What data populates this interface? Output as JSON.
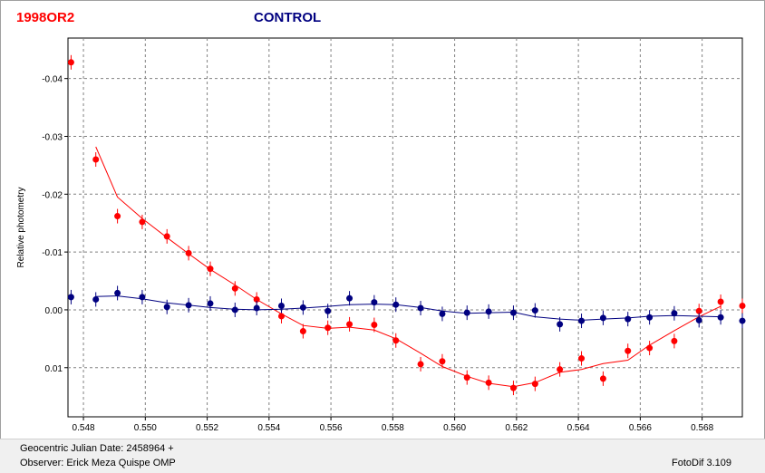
{
  "legend": {
    "target_label": "1998OR2",
    "control_label": "CONTROL",
    "target_color": "#ff0000",
    "control_color": "#000080"
  },
  "footer": {
    "julian_date": "Geocentric Julian Date: 2458964 +",
    "observer": "Observer: Erick Meza Quispe OMP",
    "version": "FotoDif 3.109"
  },
  "chart_data": {
    "type": "scatter",
    "ylabel": "Relative photometry",
    "xlabel": "",
    "xlim": [
      0.5475,
      0.5693
    ],
    "ylim": [
      0.0185,
      -0.047
    ],
    "y_inverted": true,
    "grid": true,
    "x_ticks": [
      "0.548",
      "0.550",
      "0.552",
      "0.554",
      "0.556",
      "0.558",
      "0.560",
      "0.562",
      "0.564",
      "0.566",
      "0.568"
    ],
    "x_tick_values": [
      0.548,
      0.55,
      0.552,
      0.554,
      0.556,
      0.558,
      0.56,
      0.562,
      0.564,
      0.566,
      0.568
    ],
    "y_ticks": [
      "-0.04",
      "-0.03",
      "-0.02",
      "-0.01",
      "0.00",
      "0.01"
    ],
    "y_tick_values": [
      -0.04,
      -0.03,
      -0.02,
      -0.01,
      0.0,
      0.01
    ],
    "series": [
      {
        "name": "1998OR2",
        "color": "#ff0000",
        "points": [
          {
            "x": 0.5476,
            "y": -0.0428
          },
          {
            "x": 0.5484,
            "y": -0.026
          },
          {
            "x": 0.5491,
            "y": -0.0162
          },
          {
            "x": 0.5499,
            "y": -0.0152
          },
          {
            "x": 0.5507,
            "y": -0.0127
          },
          {
            "x": 0.5514,
            "y": -0.0098
          },
          {
            "x": 0.5521,
            "y": -0.0071
          },
          {
            "x": 0.5529,
            "y": -0.0037
          },
          {
            "x": 0.5536,
            "y": -0.0018
          },
          {
            "x": 0.5544,
            "y": 0.0011
          },
          {
            "x": 0.5551,
            "y": 0.0037
          },
          {
            "x": 0.5559,
            "y": 0.0031
          },
          {
            "x": 0.5566,
            "y": 0.0025
          },
          {
            "x": 0.5574,
            "y": 0.0026
          },
          {
            "x": 0.5581,
            "y": 0.0053
          },
          {
            "x": 0.5589,
            "y": 0.0094
          },
          {
            "x": 0.5596,
            "y": 0.0089
          },
          {
            "x": 0.5604,
            "y": 0.0117
          },
          {
            "x": 0.5611,
            "y": 0.0126
          },
          {
            "x": 0.5619,
            "y": 0.0135
          },
          {
            "x": 0.5626,
            "y": 0.0128
          },
          {
            "x": 0.5634,
            "y": 0.0103
          },
          {
            "x": 0.5641,
            "y": 0.0084
          },
          {
            "x": 0.5648,
            "y": 0.0119
          },
          {
            "x": 0.5656,
            "y": 0.0071
          },
          {
            "x": 0.5663,
            "y": 0.0066
          },
          {
            "x": 0.5671,
            "y": 0.0054
          },
          {
            "x": 0.5679,
            "y": 0.0002
          },
          {
            "x": 0.5686,
            "y": -0.0014
          },
          {
            "x": 0.5693,
            "y": -0.0007
          }
        ],
        "fit": [
          [
            0.5484,
            -0.0282
          ],
          [
            0.5491,
            -0.0195
          ],
          [
            0.5499,
            -0.0158
          ],
          [
            0.5507,
            -0.0125
          ],
          [
            0.5514,
            -0.0097
          ],
          [
            0.5521,
            -0.007
          ],
          [
            0.5529,
            -0.0043
          ],
          [
            0.5536,
            -0.0018
          ],
          [
            0.5544,
            0.0007
          ],
          [
            0.5551,
            0.0027
          ],
          [
            0.5559,
            0.0032
          ],
          [
            0.5566,
            0.003
          ],
          [
            0.5574,
            0.0035
          ],
          [
            0.5581,
            0.005
          ],
          [
            0.5589,
            0.0075
          ],
          [
            0.5596,
            0.0098
          ],
          [
            0.5604,
            0.0115
          ],
          [
            0.5611,
            0.0127
          ],
          [
            0.5619,
            0.0133
          ],
          [
            0.5626,
            0.0126
          ],
          [
            0.5634,
            0.0108
          ],
          [
            0.5641,
            0.0103
          ],
          [
            0.5648,
            0.0093
          ],
          [
            0.5656,
            0.0087
          ],
          [
            0.5663,
            0.0061
          ],
          [
            0.5671,
            0.0036
          ],
          [
            0.5679,
            0.0012
          ],
          [
            0.5686,
            -0.0006
          ]
        ]
      },
      {
        "name": "CONTROL",
        "color": "#000080",
        "points": [
          {
            "x": 0.5476,
            "y": -0.0022
          },
          {
            "x": 0.5484,
            "y": -0.0018
          },
          {
            "x": 0.5491,
            "y": -0.0029
          },
          {
            "x": 0.5499,
            "y": -0.0022
          },
          {
            "x": 0.5507,
            "y": -0.0005
          },
          {
            "x": 0.5514,
            "y": -0.0008
          },
          {
            "x": 0.5521,
            "y": -0.0011
          },
          {
            "x": 0.5529,
            "y": 0.0
          },
          {
            "x": 0.5536,
            "y": -0.0003
          },
          {
            "x": 0.5544,
            "y": -0.0007
          },
          {
            "x": 0.5551,
            "y": -0.0004
          },
          {
            "x": 0.5559,
            "y": 0.0002
          },
          {
            "x": 0.5566,
            "y": -0.002
          },
          {
            "x": 0.5574,
            "y": -0.0013
          },
          {
            "x": 0.5581,
            "y": -0.0009
          },
          {
            "x": 0.5589,
            "y": -0.0003
          },
          {
            "x": 0.5596,
            "y": 0.0007
          },
          {
            "x": 0.5604,
            "y": 0.0005
          },
          {
            "x": 0.5611,
            "y": 0.0003
          },
          {
            "x": 0.5619,
            "y": 0.0005
          },
          {
            "x": 0.5626,
            "y": 0.0001
          },
          {
            "x": 0.5634,
            "y": 0.0025
          },
          {
            "x": 0.5641,
            "y": 0.0019
          },
          {
            "x": 0.5648,
            "y": 0.0014
          },
          {
            "x": 0.5656,
            "y": 0.0016
          },
          {
            "x": 0.5663,
            "y": 0.0013
          },
          {
            "x": 0.5671,
            "y": 0.0006
          },
          {
            "x": 0.5679,
            "y": 0.0018
          },
          {
            "x": 0.5686,
            "y": 0.0013
          },
          {
            "x": 0.5693,
            "y": 0.0019
          }
        ],
        "fit": [
          [
            0.5484,
            -0.0023
          ],
          [
            0.5491,
            -0.0024
          ],
          [
            0.5499,
            -0.0019
          ],
          [
            0.5507,
            -0.0012
          ],
          [
            0.5514,
            -0.0008
          ],
          [
            0.5521,
            -0.0004
          ],
          [
            0.5529,
            -0.0001
          ],
          [
            0.5536,
            0.0
          ],
          [
            0.5544,
            -0.0001
          ],
          [
            0.5551,
            -0.0003
          ],
          [
            0.5559,
            -0.0006
          ],
          [
            0.5566,
            -0.0009
          ],
          [
            0.5574,
            -0.001
          ],
          [
            0.5581,
            -0.0009
          ],
          [
            0.5589,
            -0.0004
          ],
          [
            0.5596,
            0.0002
          ],
          [
            0.5604,
            0.0006
          ],
          [
            0.5611,
            0.0005
          ],
          [
            0.5619,
            0.0004
          ],
          [
            0.5626,
            0.0012
          ],
          [
            0.5634,
            0.0016
          ],
          [
            0.5641,
            0.0018
          ],
          [
            0.5648,
            0.0016
          ],
          [
            0.5656,
            0.0014
          ],
          [
            0.5663,
            0.0011
          ],
          [
            0.5671,
            0.001
          ],
          [
            0.5679,
            0.0011
          ],
          [
            0.5686,
            0.0012
          ]
        ]
      }
    ]
  }
}
